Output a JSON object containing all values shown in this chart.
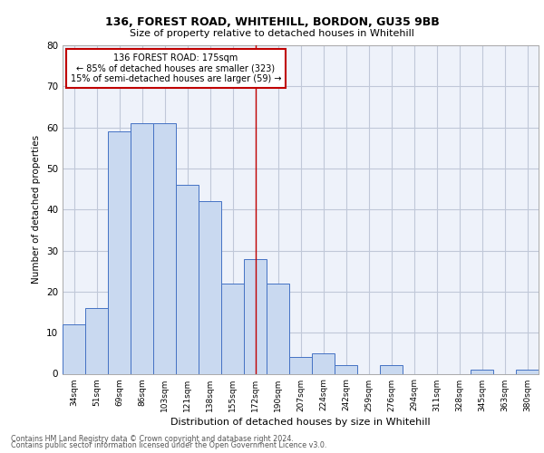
{
  "title1": "136, FOREST ROAD, WHITEHILL, BORDON, GU35 9BB",
  "title2": "Size of property relative to detached houses in Whitehill",
  "xlabel": "Distribution of detached houses by size in Whitehill",
  "ylabel": "Number of detached properties",
  "bin_labels": [
    "34sqm",
    "51sqm",
    "69sqm",
    "86sqm",
    "103sqm",
    "121sqm",
    "138sqm",
    "155sqm",
    "172sqm",
    "190sqm",
    "207sqm",
    "224sqm",
    "242sqm",
    "259sqm",
    "276sqm",
    "294sqm",
    "311sqm",
    "328sqm",
    "345sqm",
    "363sqm",
    "380sqm"
  ],
  "bar_heights": [
    12,
    16,
    59,
    61,
    61,
    46,
    42,
    22,
    28,
    22,
    4,
    5,
    2,
    0,
    2,
    0,
    0,
    0,
    1,
    0,
    1
  ],
  "bar_color": "#c9d9f0",
  "bar_edge_color": "#4472c4",
  "grid_color": "#c0c8d8",
  "background_color": "#eef2fa",
  "vline_x": 8,
  "vline_color": "#c00000",
  "annotation_text": "136 FOREST ROAD: 175sqm\n← 85% of detached houses are smaller (323)\n15% of semi-detached houses are larger (59) →",
  "annotation_box_edge": "#c00000",
  "ylim": [
    0,
    80
  ],
  "yticks": [
    0,
    10,
    20,
    30,
    40,
    50,
    60,
    70,
    80
  ],
  "footer1": "Contains HM Land Registry data © Crown copyright and database right 2024.",
  "footer2": "Contains public sector information licensed under the Open Government Licence v3.0."
}
